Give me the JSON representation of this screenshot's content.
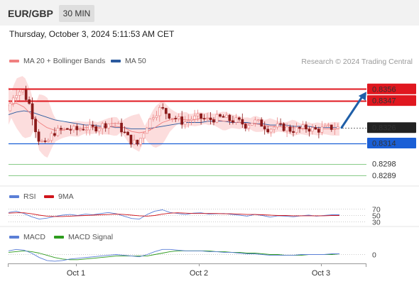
{
  "header": {
    "symbol": "EUR/GBP",
    "timeframe": "30 MIN",
    "datetime": "Thursday, October 3, 2024 5:11:53 AM CET"
  },
  "main_legend": {
    "ma20_label": "MA 20 + Bollinger Bands",
    "ma50_label": "MA 50",
    "credit": "Research © 2024 Trading Central"
  },
  "rsi_legend": {
    "rsi_label": "RSI",
    "ma_label": "9MA"
  },
  "macd_legend": {
    "macd_label": "MACD",
    "signal_label": "MACD Signal"
  },
  "colors": {
    "resistance": "#e0171f",
    "support": "#1a5fd6",
    "target": "#1e9c1e",
    "arrow": "#1f5fa8",
    "price_label": "#222222",
    "ma20": "#f08080",
    "ma50": "#2b5a9e",
    "rsi": "#5b7fd6",
    "rsi_ma": "#d0151c",
    "macd": "#5b7fd6",
    "macd_signal": "#2e9c1e",
    "candle_up": "#e88080",
    "candle_down": "#8b1a1a"
  },
  "chart_data": [
    {
      "type": "candlestick",
      "title": "EUR/GBP",
      "x_ticks": [
        "Oct 1",
        "Oct 2",
        "Oct 3"
      ],
      "levels": [
        {
          "name": "resistance-2",
          "value": 0.8356,
          "label": "0.8356"
        },
        {
          "name": "resistance-1",
          "value": 0.8347,
          "label": "0.8347"
        },
        {
          "name": "last-price",
          "value": 0.8326,
          "label": "0.8326"
        },
        {
          "name": "support-1",
          "value": 0.8314,
          "label": "0.8314"
        },
        {
          "name": "target-1",
          "value": 0.8298,
          "label": "0.8298"
        },
        {
          "name": "target-2",
          "value": 0.8289,
          "label": "0.8289"
        }
      ],
      "y_range": [
        0.8284,
        0.836
      ],
      "price_path": [
        0.8339,
        0.8353,
        0.8355,
        0.8343,
        0.8318,
        0.8312,
        0.8322,
        0.8324,
        0.8325,
        0.8324,
        0.8326,
        0.8325,
        0.8327,
        0.8329,
        0.833,
        0.8324,
        0.8316,
        0.8313,
        0.8326,
        0.8336,
        0.8341,
        0.8336,
        0.8333,
        0.833,
        0.8333,
        0.8334,
        0.8332,
        0.8333,
        0.8334,
        0.8332,
        0.8331,
        0.8328,
        0.8331,
        0.8329,
        0.8325,
        0.8327,
        0.8326,
        0.8324,
        0.8325,
        0.8326,
        0.8324,
        0.8325,
        0.8326,
        0.8326
      ],
      "ma20_path": [
        0.8343,
        0.8345,
        0.8342,
        0.8336,
        0.833,
        0.8326,
        0.8324,
        0.8324,
        0.8325,
        0.8325,
        0.8326,
        0.8326,
        0.8326,
        0.8327,
        0.8327,
        0.8326,
        0.8323,
        0.8322,
        0.8323,
        0.8326,
        0.833,
        0.8332,
        0.8333,
        0.8332,
        0.8332,
        0.8333,
        0.8333,
        0.8332,
        0.8331,
        0.8331,
        0.833,
        0.8329,
        0.8329,
        0.8328,
        0.8327,
        0.8327,
        0.8326,
        0.8326,
        0.8325,
        0.8325,
        0.8325,
        0.8325,
        0.8325,
        0.8325
      ],
      "ma50_path": [
        0.8336,
        0.8338,
        0.8339,
        0.8338,
        0.8336,
        0.8334,
        0.8332,
        0.8331,
        0.833,
        0.8329,
        0.8328,
        0.8328,
        0.8327,
        0.8327,
        0.8326,
        0.8326,
        0.8325,
        0.8325,
        0.8325,
        0.8326,
        0.8327,
        0.8328,
        0.8329,
        0.833,
        0.833,
        0.833,
        0.8331,
        0.8331,
        0.8331,
        0.833,
        0.833,
        0.833,
        0.8329,
        0.8329,
        0.8328,
        0.8328,
        0.8328,
        0.8327,
        0.8327,
        0.8327,
        0.8326,
        0.8326,
        0.8326,
        0.8326
      ],
      "projection": {
        "from": 0.8326,
        "to": 0.8356
      }
    },
    {
      "type": "line",
      "title": "RSI",
      "y_ticks": [
        70,
        50,
        30
      ],
      "y_range": [
        20,
        80
      ],
      "series": [
        {
          "name": "RSI",
          "values": [
            58,
            62,
            55,
            45,
            38,
            41,
            46,
            50,
            52,
            49,
            53,
            51,
            55,
            58,
            54,
            47,
            40,
            38,
            52,
            62,
            66,
            58,
            55,
            52,
            56,
            57,
            53,
            54,
            55,
            52,
            50,
            47,
            52,
            49,
            44,
            48,
            47,
            45,
            48,
            50,
            47,
            49,
            51,
            51
          ]
        },
        {
          "name": "9MA",
          "values": [
            56,
            57,
            57,
            54,
            50,
            47,
            46,
            46,
            47,
            48,
            49,
            50,
            51,
            52,
            53,
            52,
            50,
            48,
            47,
            49,
            53,
            56,
            57,
            56,
            55,
            55,
            55,
            55,
            54,
            54,
            53,
            52,
            52,
            51,
            50,
            49,
            49,
            48,
            48,
            48,
            48,
            48,
            49,
            49
          ]
        }
      ]
    },
    {
      "type": "line",
      "title": "MACD",
      "y_ticks": [
        0
      ],
      "y_range": [
        -1.2,
        1.2
      ],
      "series": [
        {
          "name": "MACD",
          "values": [
            0.4,
            0.6,
            0.5,
            0.1,
            -0.5,
            -0.9,
            -1.0,
            -0.9,
            -0.7,
            -0.6,
            -0.5,
            -0.4,
            -0.3,
            -0.2,
            -0.1,
            -0.2,
            -0.3,
            -0.4,
            -0.1,
            0.3,
            0.6,
            0.6,
            0.5,
            0.4,
            0.4,
            0.4,
            0.3,
            0.3,
            0.2,
            0.2,
            0.1,
            0.0,
            0.0,
            -0.1,
            -0.2,
            -0.2,
            -0.2,
            -0.2,
            -0.1,
            -0.1,
            -0.1,
            -0.1,
            0.0,
            0.0
          ]
        },
        {
          "name": "MACD Signal",
          "values": [
            0.2,
            0.3,
            0.4,
            0.3,
            0.1,
            -0.2,
            -0.5,
            -0.7,
            -0.8,
            -0.8,
            -0.7,
            -0.6,
            -0.5,
            -0.4,
            -0.3,
            -0.3,
            -0.3,
            -0.3,
            -0.3,
            -0.1,
            0.1,
            0.3,
            0.4,
            0.4,
            0.4,
            0.4,
            0.4,
            0.3,
            0.3,
            0.2,
            0.2,
            0.1,
            0.1,
            0.0,
            -0.1,
            -0.1,
            -0.2,
            -0.2,
            -0.2,
            -0.1,
            -0.1,
            -0.1,
            -0.1,
            0.0
          ]
        }
      ]
    }
  ]
}
